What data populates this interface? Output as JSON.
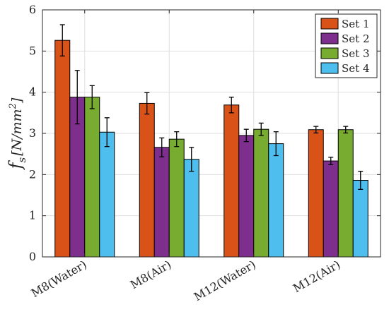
{
  "chart_data": {
    "type": "bar",
    "title": "",
    "xlabel": "",
    "ylabel": "f_s [N/mm^2]",
    "ylabel_parts": {
      "main": "f",
      "sub": "s",
      "unit_open": "[N/mm",
      "unit_sup": "2",
      "unit_close": "]"
    },
    "ylim": [
      0,
      6
    ],
    "yticks": [
      0,
      1,
      2,
      3,
      4,
      5,
      6
    ],
    "grid": true,
    "legend_position": "top-right",
    "categories": [
      "M8(Water)",
      "M8(Air)",
      "M12(Water)",
      "M12(Air)"
    ],
    "series": [
      {
        "name": "Set 1",
        "color": "#D95319",
        "values": [
          5.26,
          3.73,
          3.69,
          3.09
        ],
        "errors": [
          0.38,
          0.26,
          0.19,
          0.08
        ]
      },
      {
        "name": "Set 2",
        "color": "#7E2F8E",
        "values": [
          3.88,
          2.66,
          2.95,
          2.33
        ],
        "errors": [
          0.65,
          0.23,
          0.15,
          0.09
        ]
      },
      {
        "name": "Set 3",
        "color": "#77AC30",
        "values": [
          3.88,
          2.86,
          3.1,
          3.09
        ],
        "errors": [
          0.28,
          0.18,
          0.15,
          0.08
        ]
      },
      {
        "name": "Set 4",
        "color": "#4DBEEE",
        "values": [
          3.03,
          2.37,
          2.75,
          1.86
        ],
        "errors": [
          0.35,
          0.29,
          0.29,
          0.22
        ]
      }
    ]
  }
}
